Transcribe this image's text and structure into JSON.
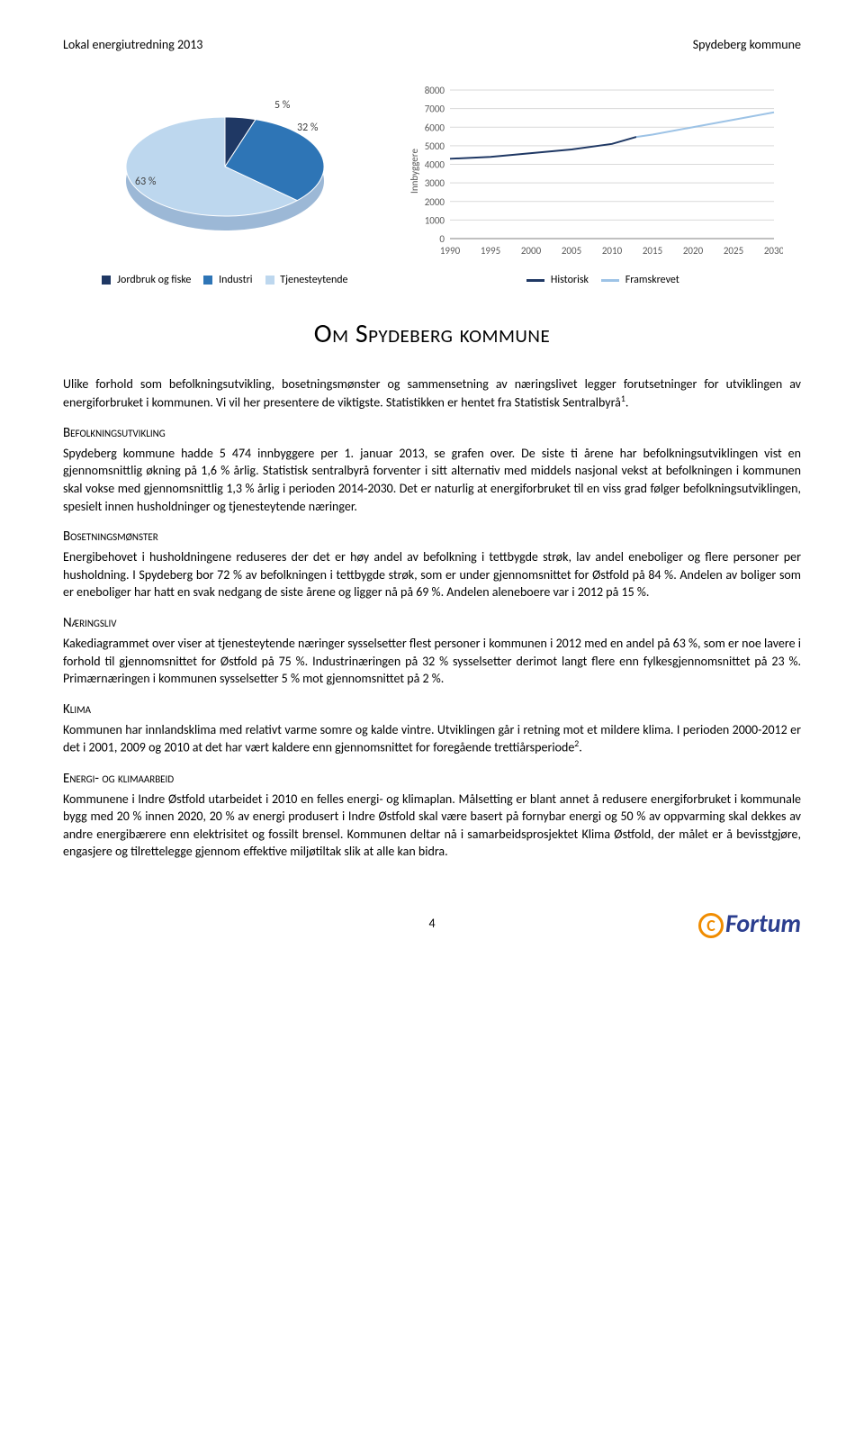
{
  "header": {
    "left": "Lokal energiutredning 2013",
    "right": "Spydeberg kommune"
  },
  "pie_chart": {
    "type": "pie",
    "background_color": "#ffffff",
    "slices": [
      {
        "label": "Jordbruk og fiske",
        "value": 5,
        "color": "#1f3864",
        "display": "5 %"
      },
      {
        "label": "Industri",
        "value": 32,
        "color": "#2e75b6",
        "display": "32 %"
      },
      {
        "label": "Tjenesteytende",
        "value": 63,
        "color": "#bdd7ee",
        "display": "63 %"
      }
    ],
    "label_fontsize": 12,
    "legend_fontsize": 11,
    "tilt_3d": true
  },
  "line_chart": {
    "type": "line",
    "background_color": "#ffffff",
    "grid_color": "#d9d9d9",
    "ylabel": "Innbyggere",
    "label_fontsize": 11,
    "tick_fontsize": 11,
    "xlim": [
      1990,
      2030
    ],
    "ylim": [
      0,
      8000
    ],
    "xtick_step": 5,
    "ytick_step": 1000,
    "xticks": [
      1990,
      1995,
      2000,
      2005,
      2010,
      2015,
      2020,
      2025,
      2030
    ],
    "yticks": [
      0,
      1000,
      2000,
      3000,
      4000,
      5000,
      6000,
      7000,
      8000
    ],
    "series": [
      {
        "name": "Historisk",
        "color": "#1f3864",
        "line_width": 2,
        "points": [
          [
            1990,
            4300
          ],
          [
            1995,
            4400
          ],
          [
            2000,
            4600
          ],
          [
            2005,
            4800
          ],
          [
            2010,
            5100
          ],
          [
            2013,
            5474
          ]
        ]
      },
      {
        "name": "Framskrevet",
        "color": "#9dc3e6",
        "line_width": 2,
        "points": [
          [
            2013,
            5474
          ],
          [
            2015,
            5600
          ],
          [
            2020,
            6000
          ],
          [
            2025,
            6400
          ],
          [
            2030,
            6800
          ]
        ]
      }
    ]
  },
  "title": "Om Spydeberg kommune",
  "intro": "Ulike forhold som befolkningsutvikling, bosetningsmønster og sammensetning av næringslivet legger forutsetninger for utviklingen av energiforbruket i kommunen. Vi vil her presentere de viktigste. Statistikken er hentet fra Statistisk Sentralbyrå",
  "intro_sup": "1",
  "intro_tail": ".",
  "sections": {
    "befolk": {
      "head": "Befolkningsutvikling",
      "body": "Spydeberg kommune hadde 5 474 innbyggere per 1. januar 2013, se grafen over. De siste ti årene har befolkningsutviklingen vist en gjennomsnittlig økning på 1,6 % årlig. Statistisk sentralbyrå forventer i sitt alternativ med middels nasjonal vekst at befolkningen i kommunen skal vokse med gjennomsnittlig 1,3 % årlig i perioden 2014-2030. Det er naturlig at energiforbruket til en viss grad følger befolkningsutviklingen, spesielt innen husholdninger og tjenesteytende næringer."
    },
    "bosetning": {
      "head": "Bosetningsmønster",
      "body": "Energibehovet i husholdningene reduseres der det er høy andel av befolkning i tettbygde strøk, lav andel eneboliger og flere personer per husholdning. I Spydeberg bor 72 % av befolkningen i tettbygde strøk, som er under gjennomsnittet for Østfold på 84 %. Andelen av boliger som er eneboliger har hatt en svak nedgang de siste årene og ligger nå på 69 %. Andelen aleneboere var i 2012 på 15 %."
    },
    "naering": {
      "head": "Næringsliv",
      "body": "Kakediagrammet over viser at tjenesteytende næringer sysselsetter flest personer i kommunen i 2012 med en andel på 63 %, som er noe lavere i forhold til gjennomsnittet for Østfold på 75 %. Industrinæringen på 32 % sysselsetter derimot langt flere enn fylkesgjennomsnittet på 23 %. Primærnæringen i kommunen sysselsetter 5 % mot gjennomsnittet på 2 %."
    },
    "klima": {
      "head": "Klima",
      "body": "Kommunen har innlandsklima med relativt varme somre og kalde vintre. Utviklingen går i retning mot et mildere klima. I perioden 2000-2012 er det i 2001, 2009 og 2010 at det har vært kaldere enn gjennomsnittet for foregående trettiårsperiode",
      "sup": "2",
      "tail": "."
    },
    "energi": {
      "head": "Energi- og klimaarbeid",
      "body": "Kommunene i Indre Østfold utarbeidet i 2010 en felles energi- og klimaplan. Målsetting er blant annet å redusere energiforbruket i kommunale bygg med 20 % innen 2020, 20 % av energi produsert i Indre Østfold skal være basert på fornybar energi og 50 % av oppvarming skal dekkes av andre energibærere enn elektrisitet og fossilt brensel. Kommunen deltar nå i samarbeidsprosjektet Klima Østfold, der målet er å bevisstgjøre, engasjere og tilrettelegge gjennom effektive miljøtiltak slik at alle kan bidra."
    }
  },
  "page_number": "4",
  "logo_text": "Fortum"
}
